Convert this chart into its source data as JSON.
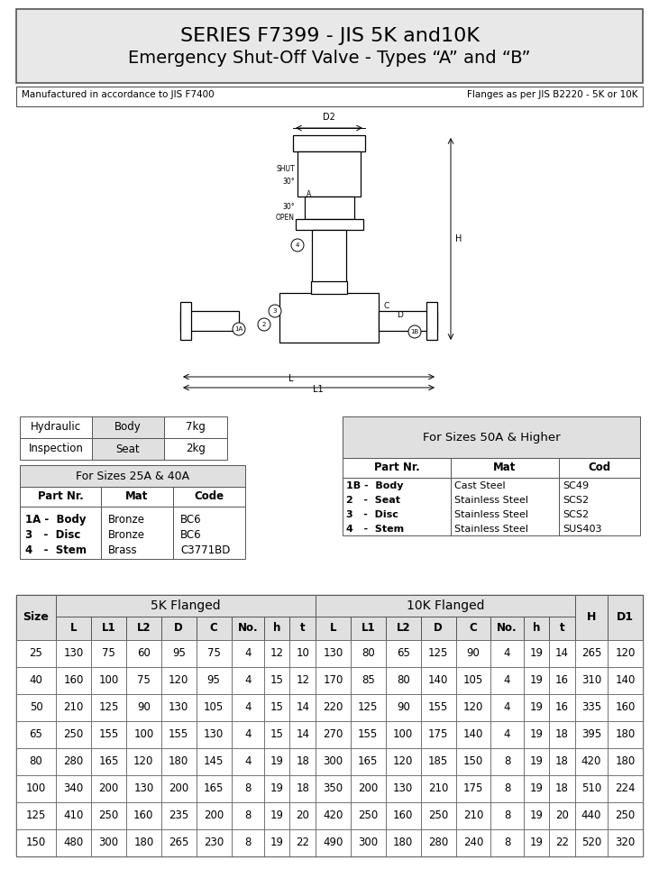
{
  "title_line1": "SERIES F7399 - JIS 5K and10K",
  "title_line2": "Emergency Shut-Off Valve - Types “A” and “B”",
  "subtitle_left": "Manufactured in accordance to JIS F7400",
  "subtitle_right": "Flanges as per JIS B2220 - 5K or 10K",
  "insp_table": {
    "rows": [
      [
        "Hydraulic",
        "Body",
        "7kg"
      ],
      [
        "Inspection",
        "Seat",
        "2kg"
      ]
    ]
  },
  "sizes_25_40_title": "For Sizes 25A & 40A",
  "sizes_25_40_headers": [
    "Part Nr.",
    "Mat",
    "Code"
  ],
  "sizes_25_40_rows": [
    [
      "1A -  Body\n3   -  Disc\n4   -  Stem",
      "Bronze\nBronze\nBrass",
      "BC6\nBC6\nC3771BD"
    ]
  ],
  "sizes_50_title": "For Sizes 50A & Higher",
  "sizes_50_headers": [
    "Part Nr.",
    "Mat",
    "Cod"
  ],
  "sizes_50_rows": [
    [
      "1B -  Body",
      "Cast Steel",
      "SC49"
    ],
    [
      "2   -  Seat",
      "Stainless Steel",
      "SCS2"
    ],
    [
      "3   -  Disc",
      "Stainless Steel",
      "SCS2"
    ],
    [
      "4   -  Stem",
      "Stainless Steel",
      "SUS403"
    ]
  ],
  "main_table_title_5k": "5K Flanged",
  "main_table_title_10k": "10K Flanged",
  "main_table_headers": [
    "Size",
    "L",
    "L1",
    "L2",
    "D",
    "C",
    "No.",
    "h",
    "t",
    "L",
    "L1",
    "L2",
    "D",
    "C",
    "No.",
    "h",
    "t",
    "H",
    "D1"
  ],
  "main_table_rows": [
    [
      25,
      130,
      75,
      60,
      95,
      75,
      4,
      12,
      10,
      130,
      80,
      65,
      125,
      90,
      4,
      19,
      14,
      265,
      120
    ],
    [
      40,
      160,
      100,
      75,
      120,
      95,
      4,
      15,
      12,
      170,
      85,
      80,
      140,
      105,
      4,
      19,
      16,
      310,
      140
    ],
    [
      50,
      210,
      125,
      90,
      130,
      105,
      4,
      15,
      14,
      220,
      125,
      90,
      155,
      120,
      4,
      19,
      16,
      335,
      160
    ],
    [
      65,
      250,
      155,
      100,
      155,
      130,
      4,
      15,
      14,
      270,
      155,
      100,
      175,
      140,
      4,
      19,
      18,
      395,
      180
    ],
    [
      80,
      280,
      165,
      120,
      180,
      145,
      4,
      19,
      18,
      300,
      165,
      120,
      185,
      150,
      8,
      19,
      18,
      420,
      180
    ],
    [
      100,
      340,
      200,
      130,
      200,
      165,
      8,
      19,
      18,
      350,
      200,
      130,
      210,
      175,
      8,
      19,
      18,
      510,
      224
    ],
    [
      125,
      410,
      250,
      160,
      235,
      200,
      8,
      19,
      20,
      420,
      250,
      160,
      250,
      210,
      8,
      19,
      20,
      440,
      250
    ],
    [
      150,
      480,
      300,
      180,
      265,
      230,
      8,
      19,
      22,
      490,
      300,
      180,
      280,
      240,
      8,
      19,
      22,
      520,
      320
    ]
  ],
  "bg_color": "#f0f0f0",
  "table_header_bg": "#d0d0d0",
  "border_color": "#333333"
}
